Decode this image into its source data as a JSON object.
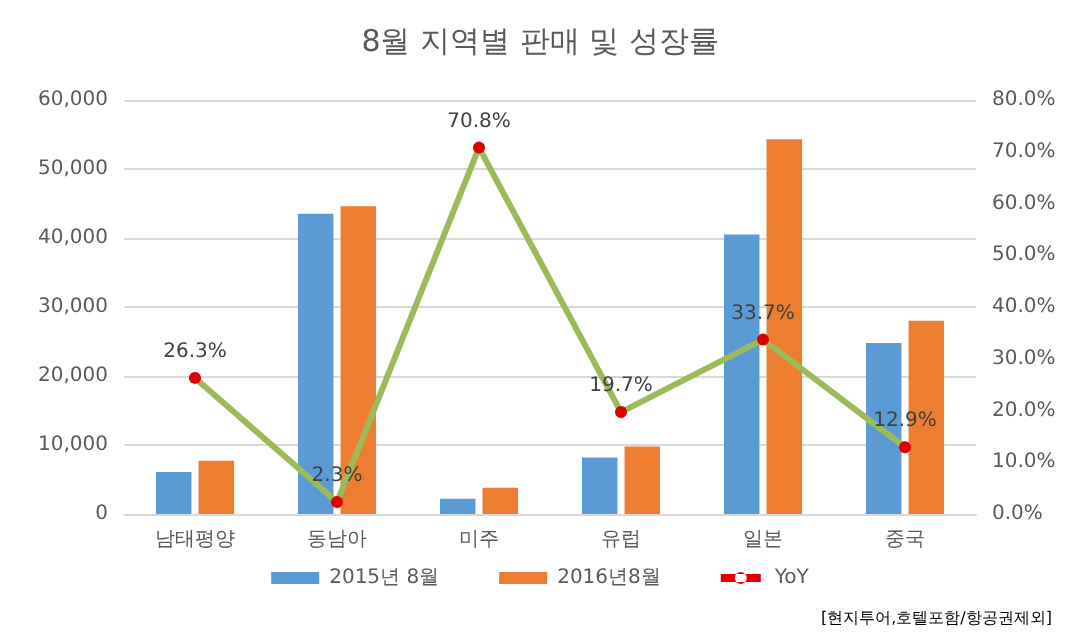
{
  "chart_data": {
    "type": "bar",
    "title": "8월 지역별 판매 및 성장률",
    "categories": [
      "남태평양",
      "동남아",
      "미주",
      "유럽",
      "일본",
      "중국"
    ],
    "series": [
      {
        "name": "2015년 8월",
        "color": "#5b9bd5",
        "values": [
          6100,
          43500,
          2200,
          8200,
          40500,
          24800
        ]
      },
      {
        "name": "2016년8월",
        "color": "#ed7d31",
        "values": [
          7700,
          44600,
          3800,
          9800,
          54300,
          28000
        ]
      },
      {
        "name": "YoY",
        "type": "line",
        "axis": "y2",
        "color": "#9bbb59",
        "marker": "circle",
        "values": [
          26.3,
          2.3,
          70.8,
          19.7,
          33.7,
          12.9
        ],
        "value_labels": [
          "26.3%",
          "2.3%",
          "70.8%",
          "19.7%",
          "33.7%",
          "12.9%"
        ]
      }
    ],
    "ylim": [
      0,
      60000
    ],
    "yticks": [
      {
        "value": 0,
        "label": "0"
      },
      {
        "value": 10000,
        "label": "10,000"
      },
      {
        "value": 20000,
        "label": "20,000"
      },
      {
        "value": 30000,
        "label": "30,000"
      },
      {
        "value": 40000,
        "label": "40,000"
      },
      {
        "value": 50000,
        "label": "50,000"
      },
      {
        "value": 60000,
        "label": "60,000"
      }
    ],
    "y2lim": [
      0,
      80
    ],
    "y2ticks": [
      {
        "value": 0,
        "label": "0.0%"
      },
      {
        "value": 10,
        "label": "10.0%"
      },
      {
        "value": 20,
        "label": "20.0%"
      },
      {
        "value": 30,
        "label": "30.0%"
      },
      {
        "value": 40,
        "label": "40.0%"
      },
      {
        "value": 50,
        "label": "50.0%"
      },
      {
        "value": 60,
        "label": "60.0%"
      },
      {
        "value": 70,
        "label": "70.0%"
      },
      {
        "value": 80,
        "label": "80.0%"
      }
    ],
    "grid": "y",
    "legend": "bottom",
    "annotations": [
      "[현지투어,호텔포함/항공권제외]"
    ]
  }
}
